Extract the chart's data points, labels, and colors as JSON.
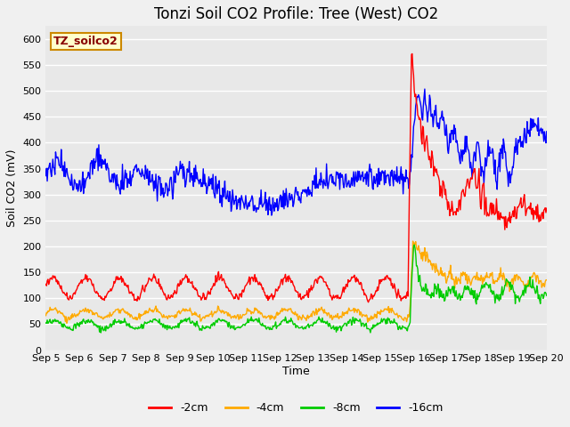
{
  "title": "Tonzi Soil CO2 Profile: Tree (West) CO2",
  "xlabel": "Time",
  "ylabel": "Soil CO2 (mV)",
  "ylim": [
    0,
    625
  ],
  "yticks": [
    0,
    50,
    100,
    150,
    200,
    250,
    300,
    350,
    400,
    450,
    500,
    550,
    600
  ],
  "fig_bg_color": "#f0f0f0",
  "plot_bg_color": "#e8e8e8",
  "grid_color": "#ffffff",
  "legend_items": [
    {
      "label": "-2cm",
      "color": "#ff0000"
    },
    {
      "label": "-4cm",
      "color": "#ffaa00"
    },
    {
      "label": "-8cm",
      "color": "#00cc00"
    },
    {
      "label": "-16cm",
      "color": "#0000ff"
    }
  ],
  "box_label": "TZ_soilco2",
  "box_color": "#ffffcc",
  "box_edge_color": "#cc8800",
  "n_points": 720,
  "seed": 42,
  "x_start": 5.0,
  "x_end": 20.0,
  "xtick_positions": [
    5,
    6,
    7,
    8,
    9,
    10,
    11,
    12,
    13,
    14,
    15,
    16,
    17,
    18,
    19,
    20
  ],
  "xtick_labels": [
    "Sep 5",
    "Sep 6",
    "Sep 7",
    "Sep 8",
    "Sep 9",
    "Sep 10",
    "Sep 11",
    "Sep 12",
    "Sep 13",
    "Sep 14",
    "Sep 15",
    "Sep 16",
    "Sep 17",
    "Sep 18",
    "Sep 19",
    "Sep 20"
  ],
  "font_size_title": 12,
  "font_size_axis": 9,
  "font_size_tick": 8,
  "font_size_legend": 9,
  "font_size_box": 9,
  "line_width": 1.0
}
